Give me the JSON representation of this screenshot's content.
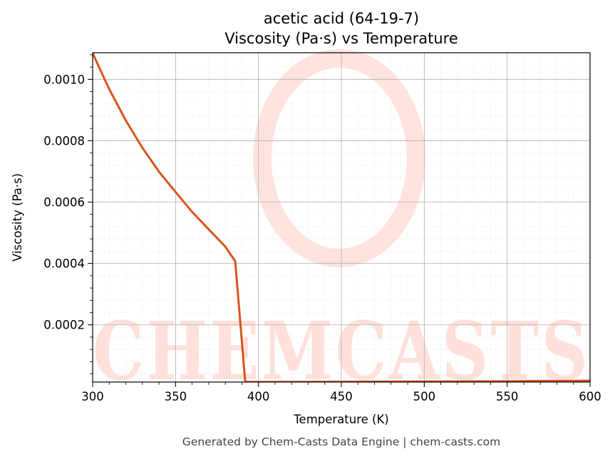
{
  "chart_data": {
    "type": "line",
    "title": "acetic acid (64-19-7)",
    "subtitle": "Viscosity (Pa·s) vs Temperature",
    "xlabel": "Temperature (K)",
    "ylabel": "Viscosity (Pa·s)",
    "xlim": [
      300,
      600
    ],
    "ylim": [
      1.35e-05,
      0.0010867
    ],
    "x_ticks": [
      300,
      350,
      400,
      450,
      500,
      550,
      600
    ],
    "y_ticks": [
      0.0002,
      0.0004,
      0.0006,
      0.0008,
      0.001
    ],
    "x_tick_labels": [
      "300",
      "350",
      "400",
      "450",
      "500",
      "550",
      "600"
    ],
    "y_tick_labels": [
      "0.0002",
      "0.0004",
      "0.0006",
      "0.0008",
      "0.0010"
    ],
    "grid": true,
    "minor_grid": true,
    "series": [
      {
        "color": "#d9541e",
        "x": [
          300,
          310,
          320,
          330,
          340,
          350,
          360,
          370,
          380,
          386,
          392,
          400,
          450,
          500,
          550,
          600
        ],
        "y": [
          0.001085,
          0.000968,
          0.000866,
          0.000777,
          0.000699,
          0.000633,
          0.000568,
          0.000511,
          0.000455,
          0.000407,
          1.37e-05,
          1.38e-05,
          1.45e-05,
          1.52e-05,
          1.6e-05,
          1.8e-05
        ]
      }
    ]
  },
  "watermark": {
    "text": "CHEMCASTS"
  },
  "footer": {
    "text": "Generated by Chem-Casts Data Engine | chem-casts.com"
  }
}
